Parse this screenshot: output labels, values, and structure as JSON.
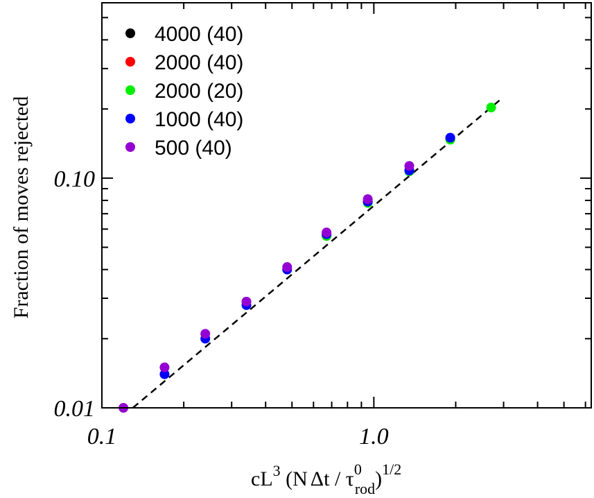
{
  "chart_data": {
    "type": "scatter",
    "title": "",
    "xscale": "log",
    "yscale": "log",
    "xlim": [
      0.1,
      6.3
    ],
    "ylim": [
      0.01,
      0.58
    ],
    "x_ticks": [
      {
        "value": 0.1,
        "label": "0.1"
      },
      {
        "value": 1.0,
        "label": "1.0"
      }
    ],
    "y_ticks": [
      {
        "value": 0.01,
        "label": "0.01"
      },
      {
        "value": 0.1,
        "label": "0.10"
      }
    ],
    "xlabel": {
      "base": "cL",
      "sup1": "3",
      "mid": " (N",
      "delta": "Δt",
      "slash": " / τ",
      "sup2": "0",
      "sub": "rod",
      "close": ")",
      "sup3": "1/2"
    },
    "ylabel": "Fraction of moves rejected",
    "legend_position": "top-left",
    "series": [
      {
        "name": "4000 (40)",
        "color": "#000000",
        "points": [
          [
            1.35,
            0.108
          ],
          [
            1.91,
            0.148
          ]
        ]
      },
      {
        "name": "2000 (40)",
        "color": "#ff0000",
        "points": [
          [
            0.67,
            0.056
          ],
          [
            0.95,
            0.079
          ],
          [
            1.35,
            0.108
          ],
          [
            1.91,
            0.148
          ]
        ]
      },
      {
        "name": "2000 (20)",
        "color": "#00ee00",
        "points": [
          [
            0.67,
            0.056
          ],
          [
            0.95,
            0.078
          ],
          [
            1.35,
            0.107
          ],
          [
            1.91,
            0.147
          ],
          [
            2.7,
            0.203
          ]
        ]
      },
      {
        "name": "1000 (40)",
        "color": "#0000ff",
        "points": [
          [
            0.17,
            0.014
          ],
          [
            0.24,
            0.02
          ],
          [
            0.34,
            0.028
          ],
          [
            0.48,
            0.04
          ],
          [
            0.67,
            0.057
          ],
          [
            0.95,
            0.079
          ],
          [
            1.35,
            0.108
          ],
          [
            1.91,
            0.15
          ]
        ]
      },
      {
        "name": "500   (40)",
        "color": "#9400d3",
        "points": [
          [
            0.12,
            0.01
          ],
          [
            0.17,
            0.015
          ],
          [
            0.24,
            0.021
          ],
          [
            0.34,
            0.029
          ],
          [
            0.48,
            0.041
          ],
          [
            0.67,
            0.058
          ],
          [
            0.95,
            0.081
          ],
          [
            1.35,
            0.113
          ]
        ]
      }
    ],
    "fit_line": {
      "style": "dashed",
      "color": "#000000",
      "x": [
        0.13,
        2.95
      ],
      "y": [
        0.01,
        0.222
      ]
    }
  }
}
